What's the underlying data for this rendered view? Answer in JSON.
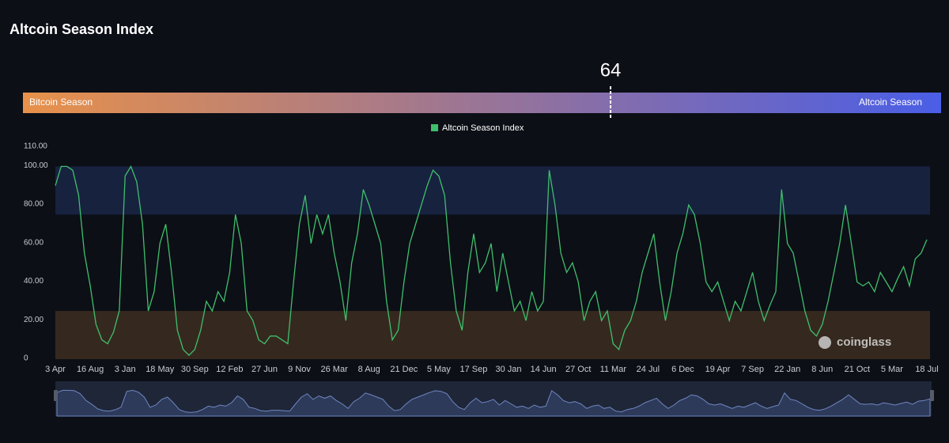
{
  "page_title": "Altcoin Season Index",
  "gauge": {
    "value": 64,
    "range": [
      0,
      100
    ],
    "left_label": "Bitcoin Season",
    "right_label": "Altcoin Season"
  },
  "watermark": "coinglass",
  "chart_data": {
    "type": "line",
    "categories": [
      "3 Apr",
      null,
      null,
      null,
      null,
      null,
      "16 Aug",
      null,
      null,
      null,
      null,
      null,
      "3 Jan",
      null,
      null,
      null,
      null,
      null,
      "18 May",
      null,
      null,
      null,
      null,
      null,
      "30 Sep",
      null,
      null,
      null,
      null,
      null,
      "12 Feb",
      null,
      null,
      null,
      null,
      null,
      "27 Jun",
      null,
      null,
      null,
      null,
      null,
      "9 Nov",
      null,
      null,
      null,
      null,
      null,
      "26 Mar",
      null,
      null,
      null,
      null,
      null,
      "8 Aug",
      null,
      null,
      null,
      null,
      null,
      "21 Dec",
      null,
      null,
      null,
      null,
      null,
      "5 May",
      null,
      null,
      null,
      null,
      null,
      "17 Sep",
      null,
      null,
      null,
      null,
      null,
      "30 Jan",
      null,
      null,
      null,
      null,
      null,
      "14 Jun",
      null,
      null,
      null,
      null,
      null,
      "27 Oct",
      null,
      null,
      null,
      null,
      null,
      "11 Mar",
      null,
      null,
      null,
      null,
      null,
      "24 Jul",
      null,
      null,
      null,
      null,
      null,
      "6 Dec",
      null,
      null,
      null,
      null,
      null,
      "19 Apr",
      null,
      null,
      null,
      null,
      null,
      "7 Sep",
      null,
      null,
      null,
      null,
      null,
      "22 Jan",
      null,
      null,
      null,
      null,
      null,
      "8 Jun",
      null,
      null,
      null,
      null,
      null,
      "21 Oct",
      null,
      null,
      null,
      null,
      null,
      "5 Mar",
      null,
      null,
      null,
      null,
      null,
      "18 Jul"
    ],
    "series": [
      {
        "name": "Altcoin Season Index",
        "color": "#3fbf6c",
        "values": [
          90,
          100,
          100,
          98,
          85,
          55,
          38,
          18,
          10,
          8,
          14,
          25,
          95,
          100,
          92,
          70,
          25,
          35,
          60,
          70,
          45,
          15,
          5,
          2,
          5,
          15,
          30,
          25,
          35,
          30,
          45,
          75,
          60,
          25,
          20,
          10,
          8,
          12,
          12,
          10,
          8,
          40,
          70,
          85,
          60,
          75,
          65,
          75,
          55,
          40,
          20,
          50,
          65,
          88,
          80,
          70,
          60,
          30,
          10,
          15,
          40,
          60,
          70,
          80,
          90,
          98,
          95,
          85,
          50,
          25,
          15,
          45,
          65,
          45,
          50,
          60,
          35,
          55,
          40,
          25,
          30,
          20,
          35,
          25,
          30,
          98,
          80,
          55,
          45,
          50,
          40,
          20,
          30,
          35,
          20,
          25,
          8,
          5,
          15,
          20,
          30,
          45,
          55,
          65,
          40,
          20,
          35,
          55,
          65,
          80,
          75,
          60,
          40,
          35,
          40,
          30,
          20,
          30,
          25,
          35,
          45,
          30,
          20,
          28,
          35,
          88,
          60,
          55,
          40,
          25,
          15,
          12,
          18,
          30,
          45,
          60,
          80,
          60,
          40,
          38,
          40,
          35,
          45,
          40,
          35,
          42,
          48,
          38,
          52,
          55,
          62
        ]
      }
    ],
    "ylim": [
      0,
      110
    ],
    "yticks": [
      0,
      {
        "value": 20,
        "label": "20.00"
      },
      {
        "value": 40,
        "label": "40.00"
      },
      {
        "value": 60,
        "label": "60.00"
      },
      {
        "value": 80,
        "label": "80.00"
      },
      {
        "value": 100,
        "label": "100.00"
      },
      {
        "value": 110,
        "label": "110.00"
      }
    ],
    "bands": [
      {
        "from": 75,
        "to": 100,
        "color": "#17223f"
      },
      {
        "from": 0,
        "to": 25,
        "color": "#35291f"
      }
    ],
    "legend": "top"
  }
}
